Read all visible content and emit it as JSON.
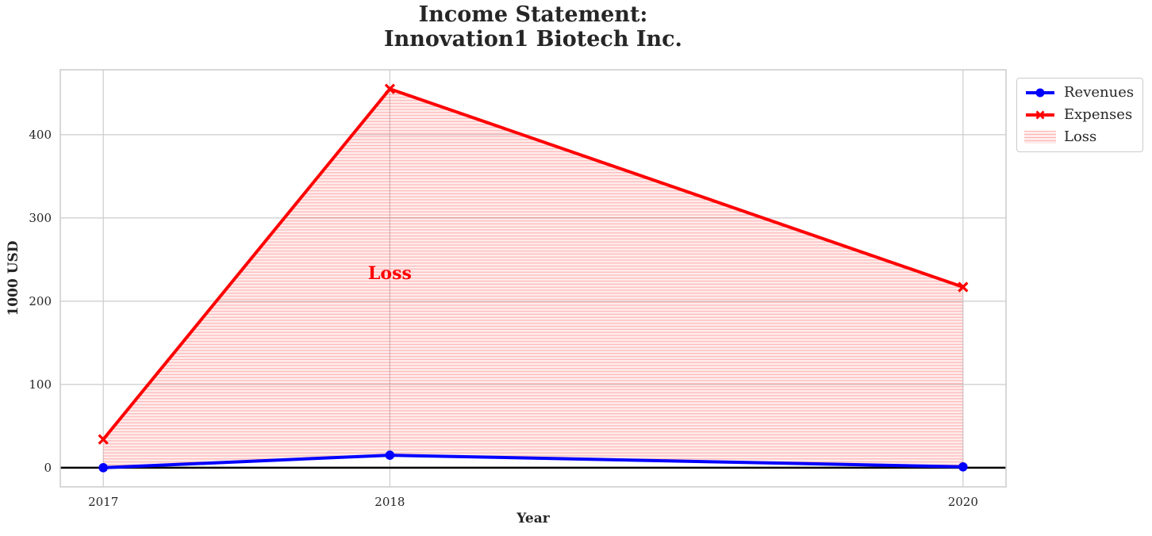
{
  "chart_data": {
    "type": "line",
    "title": "Income Statement:\nInnovation1 Biotech Inc.",
    "xlabel": "Year",
    "ylabel": "1000 USD",
    "x": [
      2017,
      2018,
      2020
    ],
    "xtick_labels": [
      "2017",
      "2018",
      "2020"
    ],
    "yticks": [
      0,
      100,
      200,
      300,
      400
    ],
    "xlim": [
      2016.85,
      2020.15
    ],
    "ylim": [
      -23,
      478
    ],
    "grid": true,
    "series": [
      {
        "name": "Revenues",
        "color": "#0000ff",
        "marker": "circle",
        "values": [
          0,
          15,
          1
        ]
      },
      {
        "name": "Expenses",
        "color": "#ff0000",
        "marker": "x",
        "values": [
          34,
          455,
          217
        ]
      }
    ],
    "loss_fill": {
      "label": "Loss",
      "between": [
        "Revenues",
        "Expenses"
      ],
      "fill_color": "rgba(255,0,0,0.07)",
      "hatch": "horizontal-lines",
      "hatch_color": "rgba(255,0,0,0.26)"
    },
    "annotation": {
      "text": "Loss",
      "x": 2018,
      "y": 234,
      "color": "#ff0000",
      "bold": true
    },
    "zero_line": {
      "y": 0,
      "color": "#000000"
    },
    "legend_position": "outside-upper-right",
    "grid_color": "#cccccc",
    "spine_color": "#cccccc",
    "tick_color": "#262626"
  }
}
